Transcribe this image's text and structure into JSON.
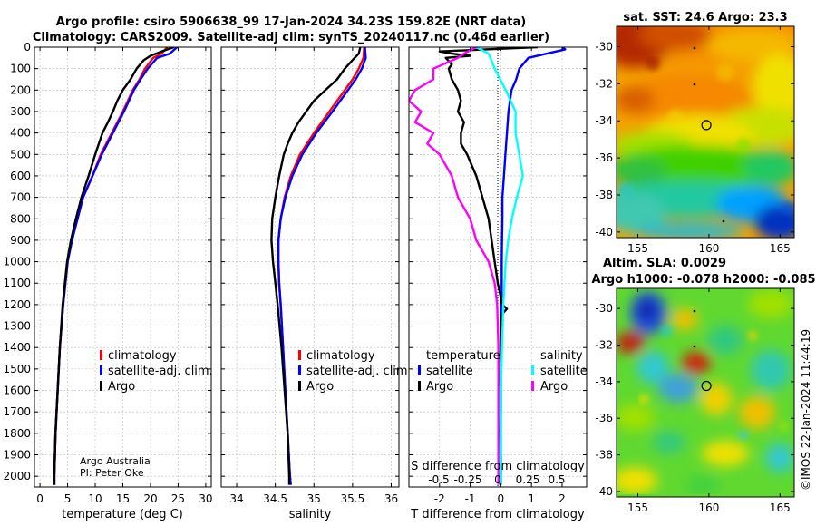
{
  "header": {
    "line1": "Argo profile: csiro 5906638_99 17-Jan-2024 34.23S 159.82E (NRT data)",
    "line2": "Climatology: CARS2009. Satellite-adj clim: synTS_20240117.nc (0.46d earlier)"
  },
  "colors": {
    "climatology": "#ff0000",
    "satellite": "#0000ff",
    "argo": "#000000",
    "sat_salinity": "#00ffff",
    "argo_salinity": "#ff00ff",
    "grid": "#b8b8b8"
  },
  "chart_data": [
    {
      "id": "temperature",
      "type": "line",
      "xlabel": "temperature (deg C)",
      "ylabel": "",
      "xlim": [
        -1,
        31
      ],
      "ylim": [
        2050,
        0
      ],
      "xticks": [
        "0",
        "5",
        "10",
        "15",
        "20",
        "25",
        "30"
      ],
      "yticks": [
        "0",
        "100",
        "200",
        "300",
        "400",
        "500",
        "600",
        "700",
        "800",
        "900",
        "1000",
        "1100",
        "1200",
        "1300",
        "1400",
        "1500",
        "1600",
        "1700",
        "1800",
        "1900",
        "2000"
      ],
      "grid": true,
      "legend": [
        "climatology",
        "satellite-adj. clim.",
        "Argo"
      ],
      "annotation": [
        "Argo Australia",
        "PI: Peter Oke"
      ],
      "series": [
        {
          "name": "climatology",
          "y": [
            0,
            30,
            50,
            100,
            150,
            200,
            300,
            400,
            500,
            600,
            700,
            800,
            900,
            1000,
            1200,
            1400,
            1600,
            1800,
            2000,
            2040
          ],
          "x": [
            23.0,
            22.0,
            20.5,
            19.0,
            18.0,
            16.8,
            15.0,
            13.0,
            11.0,
            9.5,
            7.8,
            6.8,
            5.8,
            5.0,
            4.2,
            3.6,
            3.2,
            2.8,
            2.6,
            2.6
          ]
        },
        {
          "name": "satellite-adj. clim.",
          "y": [
            0,
            30,
            50,
            100,
            150,
            200,
            300,
            400,
            500,
            600,
            700,
            800,
            900,
            1000,
            1200,
            1400,
            1600,
            1800,
            2000,
            2040
          ],
          "x": [
            24.8,
            23.5,
            21.2,
            19.5,
            18.2,
            17.0,
            15.2,
            13.2,
            11.2,
            9.5,
            7.8,
            6.8,
            5.8,
            5.0,
            4.2,
            3.6,
            3.2,
            2.8,
            2.6,
            2.6
          ]
        },
        {
          "name": "Argo",
          "y": [
            0,
            20,
            40,
            60,
            100,
            150,
            200,
            250,
            300,
            350,
            400,
            500,
            600,
            700,
            800,
            900,
            1000,
            1200,
            1400,
            1600,
            1800,
            2000,
            2040
          ],
          "x": [
            24.2,
            22.0,
            20.0,
            18.8,
            17.5,
            16.4,
            15.0,
            14.0,
            13.2,
            12.3,
            11.3,
            10.0,
            8.8,
            7.5,
            6.5,
            5.6,
            4.9,
            4.1,
            3.6,
            3.2,
            2.8,
            2.6,
            2.6
          ]
        }
      ]
    },
    {
      "id": "salinity",
      "type": "line",
      "xlabel": "salinity",
      "ylabel": "",
      "xlim": [
        33.8,
        36.1
      ],
      "ylim": [
        2050,
        0
      ],
      "xticks": [
        "34",
        "34.5",
        "35",
        "35.5",
        "36"
      ],
      "grid": true,
      "legend": [
        "climatology",
        "satellite-adj. clim.",
        "Argo"
      ],
      "series": [
        {
          "name": "climatology",
          "y": [
            0,
            50,
            100,
            150,
            200,
            300,
            400,
            500,
            600,
            700,
            800,
            900,
            1000,
            1100,
            1200,
            1400,
            1600,
            1800,
            2000,
            2040
          ],
          "x": [
            35.65,
            35.64,
            35.58,
            35.5,
            35.4,
            35.2,
            35.0,
            34.82,
            34.7,
            34.62,
            34.57,
            34.54,
            34.54,
            34.55,
            34.57,
            34.6,
            34.63,
            34.66,
            34.69,
            34.7
          ]
        },
        {
          "name": "satellite-adj. clim.",
          "y": [
            0,
            50,
            100,
            150,
            200,
            300,
            400,
            500,
            600,
            700,
            800,
            900,
            1000,
            1100,
            1200,
            1400,
            1600,
            1800,
            2000,
            2040
          ],
          "x": [
            35.66,
            35.67,
            35.62,
            35.54,
            35.44,
            35.24,
            35.03,
            34.85,
            34.72,
            34.63,
            34.57,
            34.54,
            34.54,
            34.55,
            34.57,
            34.6,
            34.63,
            34.66,
            34.69,
            34.7
          ]
        },
        {
          "name": "Argo",
          "y": [
            0,
            30,
            60,
            100,
            150,
            200,
            250,
            300,
            350,
            400,
            450,
            500,
            600,
            700,
            800,
            900,
            1000,
            1100,
            1200,
            1400,
            1600,
            1800,
            2000,
            2040
          ],
          "x": [
            35.6,
            35.58,
            35.5,
            35.4,
            35.3,
            35.15,
            35.0,
            34.9,
            34.8,
            34.72,
            34.66,
            34.61,
            34.55,
            34.5,
            34.46,
            34.45,
            34.47,
            34.5,
            34.53,
            34.58,
            34.62,
            34.66,
            34.68,
            34.68
          ]
        }
      ]
    },
    {
      "id": "differences",
      "type": "line",
      "xlabel": "T difference from climatology",
      "ylabel": "",
      "x2label": "S difference from climatology",
      "xlim": [
        -3.0,
        2.8
      ],
      "ylim": [
        2050,
        0
      ],
      "xticks": [
        "-2",
        "-1",
        "0",
        "1",
        "2"
      ],
      "x2ticks": [
        "-0.5",
        "-0.25",
        "0",
        "0.25",
        "0.5"
      ],
      "grid": true,
      "legend_temperature": [
        "temperature",
        "satellite",
        "Argo"
      ],
      "legend_salinity": [
        "salinity",
        "satellite",
        "Argo"
      ],
      "series": [
        {
          "name": "temperature satellite",
          "y": [
            0,
            10,
            30,
            50,
            100,
            150,
            200,
            300,
            400,
            500,
            600,
            700,
            800,
            900,
            1000,
            1100,
            1200,
            1400,
            1600,
            1800,
            2000,
            2040
          ],
          "x": [
            2.0,
            2.1,
            1.5,
            0.9,
            0.6,
            0.5,
            0.35,
            0.25,
            0.2,
            0.15,
            0.1,
            0.05,
            0.05,
            0.04,
            0.03,
            0.03,
            0.02,
            0.01,
            0.0,
            0.0,
            0.0,
            0.0
          ]
        },
        {
          "name": "temperature Argo",
          "y": [
            0,
            10,
            20,
            30,
            40,
            50,
            80,
            100,
            150,
            200,
            250,
            300,
            350,
            400,
            450,
            500,
            600,
            700,
            800,
            900,
            1000,
            1100,
            1200,
            1220,
            1250,
            1400,
            1500,
            1600,
            1700,
            1800,
            1900,
            2000,
            2040
          ],
          "x": [
            1.2,
            -0.5,
            -2.0,
            -1.6,
            -1.0,
            -1.8,
            -1.6,
            -1.7,
            -1.6,
            -1.4,
            -1.3,
            -1.4,
            -1.2,
            -1.3,
            -1.3,
            -1.1,
            -0.8,
            -0.6,
            -0.4,
            -0.3,
            -0.2,
            -0.1,
            0.05,
            0.2,
            0.0,
            0.0,
            -0.05,
            0.0,
            0.0,
            -0.02,
            0.0,
            0.0,
            0.0
          ]
        },
        {
          "name": "salinity satellite",
          "y": [
            0,
            30,
            100,
            200,
            300,
            400,
            500,
            600,
            700,
            800,
            900,
            1000,
            1100,
            1200,
            1400,
            1600,
            1800,
            2000,
            2040
          ],
          "x": [
            -0.2,
            -0.1,
            -0.05,
            0.04,
            0.12,
            0.12,
            0.15,
            0.18,
            0.13,
            0.09,
            0.06,
            0.04,
            0.03,
            0.02,
            0.01,
            0.0,
            0.0,
            0.0,
            0.0
          ]
        },
        {
          "name": "salinity Argo",
          "y": [
            0,
            30,
            50,
            100,
            150,
            200,
            250,
            300,
            350,
            400,
            450,
            500,
            600,
            700,
            800,
            900,
            1000,
            1100,
            1200,
            1400,
            1600,
            1800,
            2000,
            2040
          ],
          "x": [
            -0.2,
            -0.3,
            -0.35,
            -0.55,
            -0.55,
            -0.7,
            -0.75,
            -0.65,
            -0.7,
            -0.55,
            -0.6,
            -0.5,
            -0.4,
            -0.35,
            -0.25,
            -0.2,
            -0.1,
            -0.05,
            -0.03,
            -0.02,
            -0.02,
            -0.02,
            -0.02,
            -0.02
          ]
        }
      ]
    },
    {
      "id": "sst_map",
      "type": "heatmap",
      "title": "sat. SST: 24.6 Argo: 23.3",
      "xticks": [
        "155",
        "160",
        "165"
      ],
      "yticks": [
        "-30",
        "-32",
        "-34",
        "-36",
        "-38",
        "-40"
      ],
      "xlim": [
        153.5,
        166
      ],
      "ylim": [
        -40.3,
        -28.9
      ],
      "argo_position": {
        "lon": 159.82,
        "lat": -34.23
      }
    },
    {
      "id": "sla_map",
      "type": "heatmap",
      "title": "Altim. SLA: 0.0029",
      "subtitle": "Argo h1000: -0.078 h2000: -0.085",
      "xticks": [
        "155",
        "160",
        "165"
      ],
      "yticks": [
        "-30",
        "-32",
        "-34",
        "-36",
        "-38",
        "-40"
      ],
      "xlim": [
        153.5,
        166
      ],
      "ylim": [
        -40.3,
        -28.9
      ],
      "argo_position": {
        "lon": 159.82,
        "lat": -34.23
      }
    }
  ],
  "copyright": "©IMOS 22-Jan-2024 11:44:19"
}
